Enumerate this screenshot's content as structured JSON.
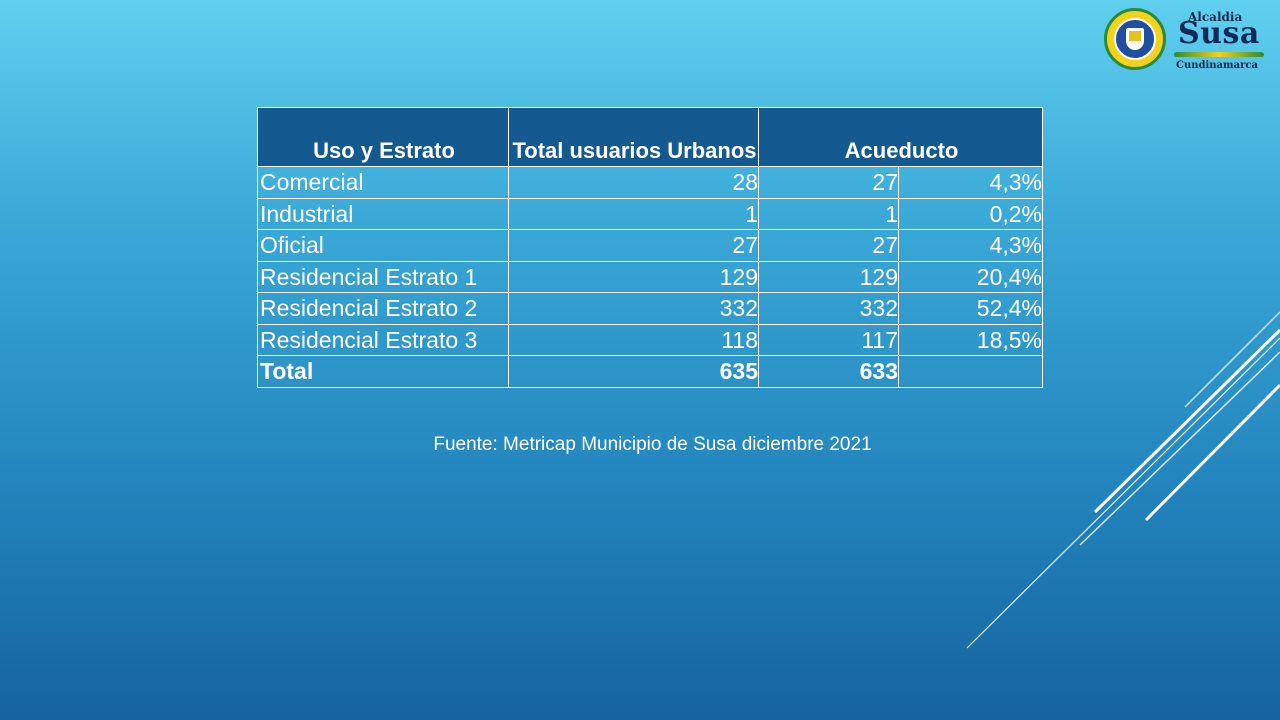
{
  "logo": {
    "top_text": "Alcaldia",
    "name": "Susa",
    "sub_text": "Cundinamarca"
  },
  "table": {
    "headers": {
      "uso": "Uso y Estrato",
      "total": "Total usuarios Urbanos",
      "acueducto": "Acueducto"
    },
    "rows": [
      {
        "uso": "Comercial",
        "total": "28",
        "acueducto": "27",
        "pct": "4,3%"
      },
      {
        "uso": "Industrial",
        "total": "1",
        "acueducto": "1",
        "pct": "0,2%"
      },
      {
        "uso": "Oficial",
        "total": "27",
        "acueducto": "27",
        "pct": "4,3%"
      },
      {
        "uso": "Residencial Estrato 1",
        "total": "129",
        "acueducto": "129",
        "pct": "20,4%"
      },
      {
        "uso": "Residencial Estrato 2",
        "total": "332",
        "acueducto": "332",
        "pct": "52,4%"
      },
      {
        "uso": "Residencial Estrato 3",
        "total": "118",
        "acueducto": "117",
        "pct": "18,5%"
      }
    ],
    "total_row": {
      "uso": "Total",
      "total": "635",
      "acueducto": "633",
      "pct": ""
    }
  },
  "source": "Fuente: Metricap Municipio de Susa diciembre 2021",
  "colors": {
    "header_bg": "#145a91",
    "text": "#ffffff",
    "bg_top": "#5fd0ef",
    "bg_bottom": "#15639f"
  }
}
